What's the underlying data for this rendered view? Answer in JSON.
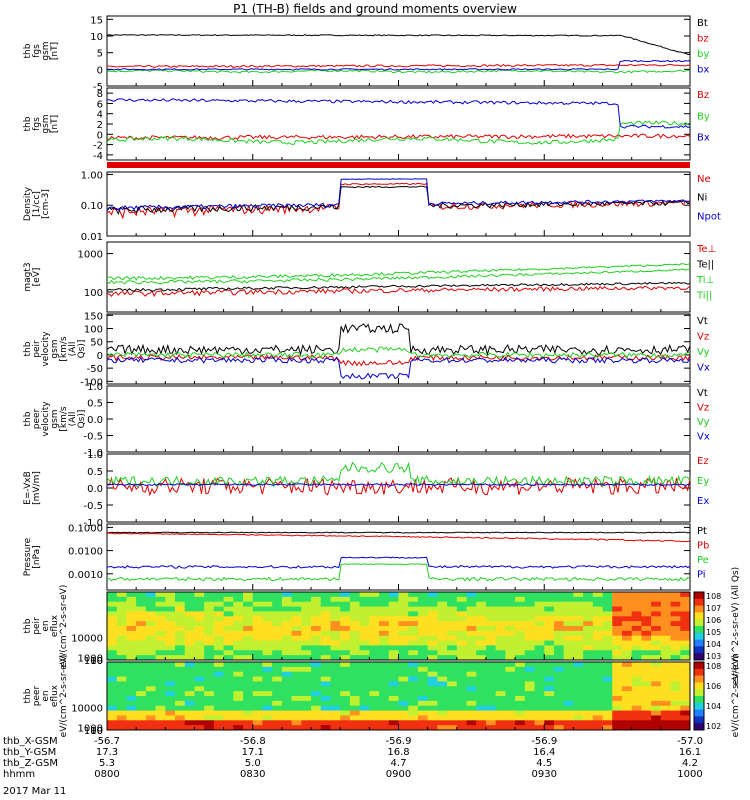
{
  "title": "P1 (TH-B) fields and ground moments overview",
  "date_label": "2017 Mar 11",
  "colors": {
    "black": "#000000",
    "red": "#e00000",
    "green": "#20d020",
    "blue": "#0000d0"
  },
  "x_axis": {
    "row_labels": [
      "thb_X-GSM",
      "thb_Y-GSM",
      "thb_Z-GSM",
      "hhmm"
    ],
    "columns": [
      {
        "values": [
          "-56.7",
          "17.3",
          "5.3",
          "0800"
        ]
      },
      {
        "values": [
          "-56.8",
          "17.1",
          "5.0",
          "0830"
        ]
      },
      {
        "values": [
          "-56.9",
          "16.8",
          "4.7",
          "0900"
        ]
      },
      {
        "values": [
          "-56.9",
          "16.4",
          "4.5",
          "0930"
        ]
      },
      {
        "values": [
          "-57.0",
          "16.1",
          "4.2",
          "1000"
        ]
      }
    ]
  },
  "chart_data": [
    {
      "type": "line",
      "ylabel": "thb fgs gsm [nT]",
      "yticks": [
        "-5",
        "0",
        "5",
        "10",
        "15"
      ],
      "ylim": [
        -5,
        16
      ],
      "series": [
        {
          "name": "Bt",
          "color": "black"
        },
        {
          "name": "bz",
          "color": "red"
        },
        {
          "name": "by",
          "color": "green"
        },
        {
          "name": "bx",
          "color": "blue"
        }
      ]
    },
    {
      "type": "line",
      "ylabel": "thb fgs gsm [nT]",
      "yticks": [
        "-4",
        "-2",
        "0",
        "2",
        "4",
        "6",
        "8"
      ],
      "ylim": [
        -5,
        9
      ],
      "series": [
        {
          "name": "Bz",
          "color": "red"
        },
        {
          "name": "By",
          "color": "green"
        },
        {
          "name": "Bx",
          "color": "blue"
        }
      ]
    },
    {
      "type": "line",
      "log": true,
      "ylabel": "Density [1/cc] [cm-3]",
      "yticks": [
        "0.01",
        "0.10",
        "1.00"
      ],
      "ylim": [
        0.01,
        1.2
      ],
      "series": [
        {
          "name": "Ne",
          "color": "red"
        },
        {
          "name": "Ni",
          "color": "black"
        },
        {
          "name": "Npot",
          "color": "blue"
        }
      ]
    },
    {
      "type": "line",
      "log": true,
      "ylabel": "magt3 [eV]",
      "yticks": [
        "100",
        "1000"
      ],
      "ylim": [
        30,
        2000
      ],
      "series": [
        {
          "name": "Te⊥",
          "color": "red"
        },
        {
          "name": "Te||",
          "color": "black"
        },
        {
          "name": "Ti⊥",
          "color": "green"
        },
        {
          "name": "Ti||",
          "color": "green"
        }
      ]
    },
    {
      "type": "line",
      "ylabel": "thb peir velocity gsm [km/s (All Qs)]",
      "yticks": [
        "-100",
        "-50",
        "0",
        "50",
        "100",
        "150"
      ],
      "ylim": [
        -110,
        155
      ],
      "series": [
        {
          "name": "Vt",
          "color": "black"
        },
        {
          "name": "Vz",
          "color": "red"
        },
        {
          "name": "Vy",
          "color": "green"
        },
        {
          "name": "Vx",
          "color": "blue"
        }
      ]
    },
    {
      "type": "line",
      "ylabel": "thb peer velocity gsm [km/s (All Qs)]",
      "yticks": [
        "-1.0",
        "-0.5",
        "0.0",
        "0.5",
        "1.0"
      ],
      "ylim": [
        -1,
        1
      ],
      "series": [
        {
          "name": "Vt",
          "color": "black"
        },
        {
          "name": "Vz",
          "color": "red"
        },
        {
          "name": "Vy",
          "color": "green"
        },
        {
          "name": "Vx",
          "color": "blue"
        }
      ]
    },
    {
      "type": "line",
      "ylabel": "E=-VxB [mV/m]",
      "yticks": [
        "-1.0",
        "-0.5",
        "0.0",
        "0.5",
        "1.0"
      ],
      "ylim": [
        -1,
        1
      ],
      "series": [
        {
          "name": "Ez",
          "color": "red"
        },
        {
          "name": "Ey",
          "color": "green"
        },
        {
          "name": "Ex",
          "color": "blue"
        }
      ]
    },
    {
      "type": "line",
      "log": true,
      "ylabel": "Pressure [nPa]",
      "yticks": [
        "0.0010",
        "0.0100",
        "0.1000"
      ],
      "ylim": [
        0.0002,
        0.14
      ],
      "series": [
        {
          "name": "Pt",
          "color": "black"
        },
        {
          "name": "Pb",
          "color": "red"
        },
        {
          "name": "Pe",
          "color": "green"
        },
        {
          "name": "Pi",
          "color": "blue"
        }
      ]
    },
    {
      "type": "heatmap",
      "ylabel": "thb peir en eflux eV/(cm^2-s-sr-eV)",
      "yticks": [
        "10",
        "100",
        "1000",
        "10000"
      ],
      "ylim": [
        5,
        30000
      ]
    },
    {
      "type": "heatmap",
      "ylabel": "thb peer en eflux eV/(cm^2-s-sr-eV)",
      "yticks": [
        "10",
        "100",
        "1000",
        "10000"
      ],
      "ylim": [
        5,
        30000
      ]
    }
  ],
  "colorbar_top": {
    "ticks": [
      "10^8",
      "10^7",
      "10^6",
      "10^5",
      "10^4",
      "10^3"
    ],
    "label": "eV/(cm^2-s-sr-eV) (All Qs)"
  },
  "colorbar_bottom": {
    "ticks": [
      "10^8",
      "10^6",
      "10^4",
      "10^2"
    ],
    "label": "eV/(cm^2-s-sr-eV)"
  }
}
